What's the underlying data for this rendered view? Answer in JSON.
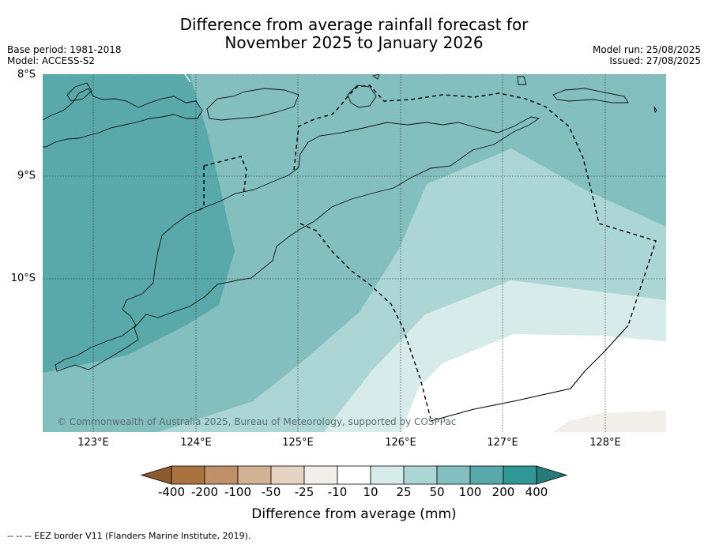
{
  "title_line1": "Difference from average rainfall forecast for",
  "title_line2": "November 2025 to January 2026",
  "meta_left": [
    "Base period: 1981-2018",
    "Model: ACCESS-S2"
  ],
  "meta_right": [
    "Model run: 25/08/2025",
    "Issued: 27/08/2025"
  ],
  "lat_labels": [
    "8°S",
    "9°S",
    "10°S"
  ],
  "lon_labels": [
    "123°E",
    "124°E",
    "125°E",
    "126°E",
    "127°E",
    "128°E"
  ],
  "copyright": "© Commonwealth of Australia 2025, Bureau of Meteorology, supported by COSPPac",
  "colorbar": {
    "title": "Difference from average (mm)",
    "tick_labels": [
      "-400",
      "-200",
      "-100",
      "-50",
      "-25",
      "-10",
      "10",
      "25",
      "50",
      "100",
      "200",
      "400"
    ],
    "colors": [
      "#8c5a2c",
      "#a8733f",
      "#c09068",
      "#d3b293",
      "#e5d3c3",
      "#f2efeb",
      "#ffffff",
      "#d6ebea",
      "#acd6d5",
      "#82bfbe",
      "#59a9aa",
      "#2f9896",
      "#277a78"
    ]
  },
  "footnote": "--  --  -- EEZ border V11 (Flanders Marine Institute, 2019).",
  "map_extent": {
    "lon": [
      122.5,
      128.6
    ],
    "lat": [
      -8.0,
      -11.5
    ]
  },
  "legend_items": [
    {
      "symbol": "dashed-line",
      "label": "EEZ border V11 (Flanders Marine Institute, 2019)."
    }
  ]
}
